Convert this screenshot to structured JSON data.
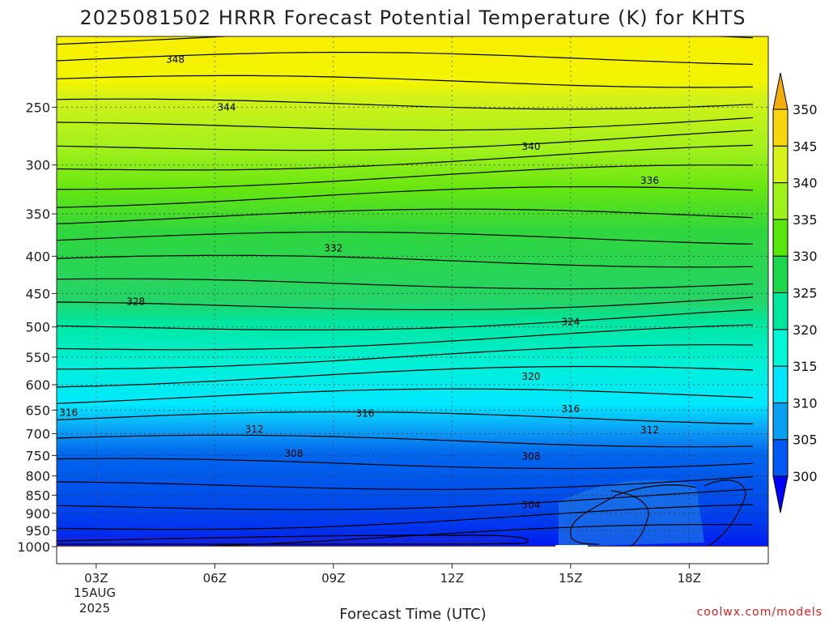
{
  "chart_data": {
    "type": "heatmap",
    "title": "2025081502 HRRR Forecast Potential Temperature (K) for KHTS",
    "xlabel": "Forecast Time (UTC)",
    "ylabel": "",
    "x_ticks": [
      "03Z",
      "06Z",
      "09Z",
      "12Z",
      "15Z",
      "18Z"
    ],
    "x_tick_hours": [
      3,
      6,
      9,
      12,
      15,
      18
    ],
    "x_date_label": [
      "15AUG",
      "2025"
    ],
    "xlim_hours": [
      2,
      20
    ],
    "y_ticks": [
      250,
      300,
      350,
      400,
      450,
      500,
      550,
      600,
      650,
      700,
      750,
      800,
      850,
      900,
      950,
      1000
    ],
    "ylim_pressure": [
      200,
      1000
    ],
    "y_scale": "log",
    "grid": true,
    "ground_color": "#9c4a2c",
    "colorbar": {
      "levels": [
        300,
        305,
        310,
        315,
        320,
        325,
        330,
        335,
        340,
        345,
        350
      ],
      "labels": [
        "300",
        "305",
        "310",
        "315",
        "320",
        "325",
        "330",
        "335",
        "340",
        "345",
        "350"
      ],
      "colors": [
        "#0019ef",
        "#0059f2",
        "#0aa0f0",
        "#00e6ff",
        "#00f7d6",
        "#00e69b",
        "#1cd64c",
        "#58e60c",
        "#9df21a",
        "#d8f21b",
        "#f8d50f",
        "#ffb000",
        "#ffd700"
      ],
      "under_color": "#0000ff",
      "over_color": "#f3ad0d"
    },
    "contour_interval": 2,
    "contour_labels": [
      {
        "value": "348",
        "hour": 5.0,
        "p": 215
      },
      {
        "value": "344",
        "hour": 6.3,
        "p": 250
      },
      {
        "value": "340",
        "hour": 14.0,
        "p": 283
      },
      {
        "value": "336",
        "hour": 17.0,
        "p": 315
      },
      {
        "value": "332",
        "hour": 9.0,
        "p": 390
      },
      {
        "value": "328",
        "hour": 4.0,
        "p": 462
      },
      {
        "value": "324",
        "hour": 15.0,
        "p": 492
      },
      {
        "value": "320",
        "hour": 14.0,
        "p": 585
      },
      {
        "value": "316",
        "hour": 2.3,
        "p": 655
      },
      {
        "value": "316",
        "hour": 9.8,
        "p": 657
      },
      {
        "value": "316",
        "hour": 15.0,
        "p": 648
      },
      {
        "value": "312",
        "hour": 7.0,
        "p": 690
      },
      {
        "value": "312",
        "hour": 17.0,
        "p": 692
      },
      {
        "value": "308",
        "hour": 8.0,
        "p": 745
      },
      {
        "value": "308",
        "hour": 14.0,
        "p": 752
      },
      {
        "value": "304",
        "hour": 14.0,
        "p": 877
      }
    ],
    "legend": "colorbar at right"
  },
  "credit": "coolwx.com/models"
}
